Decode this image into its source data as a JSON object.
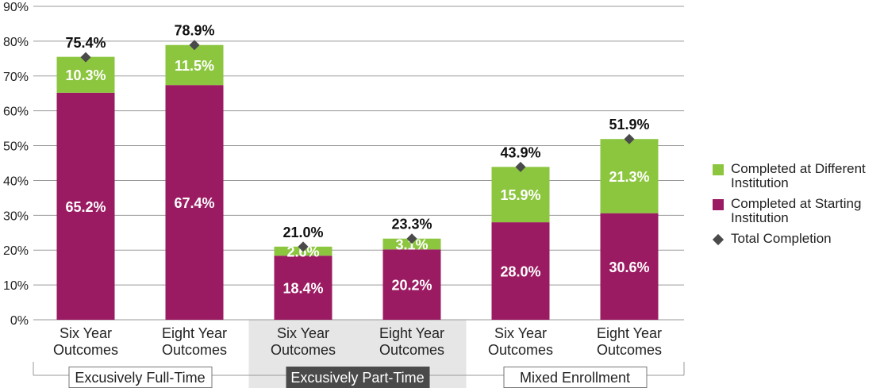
{
  "chart_data": {
    "type": "bar",
    "stacked": true,
    "title": "",
    "xlabel": "",
    "ylabel": "",
    "ylim": [
      0,
      90
    ],
    "yticks": [
      "0%",
      "10%",
      "20%",
      "30%",
      "40%",
      "50%",
      "60%",
      "70%",
      "80%",
      "90%"
    ],
    "grid": true,
    "legend_position": "right",
    "categories": [
      [
        "Six Year",
        "Outcomes"
      ],
      [
        "Eight Year",
        "Outcomes"
      ],
      [
        "Six Year",
        "Outcomes"
      ],
      [
        "Eight Year",
        "Outcomes"
      ],
      [
        "Six Year",
        "Outcomes"
      ],
      [
        "Eight Year",
        "Outcomes"
      ]
    ],
    "groups": [
      {
        "label": "Excusively Full-Time",
        "highlight": false
      },
      {
        "label": "Excusively Part-Time",
        "highlight": true
      },
      {
        "label": "Mixed Enrollment",
        "highlight": false
      }
    ],
    "series": [
      {
        "name": "Completed at Starting Institution",
        "values": [
          65.2,
          67.4,
          18.4,
          20.2,
          28.0,
          30.6
        ],
        "labels": [
          "65.2%",
          "67.4%",
          "18.4%",
          "20.2%",
          "28.0%",
          "30.6%"
        ],
        "color": "#9b1b62"
      },
      {
        "name": "Completed at Different Institution",
        "values": [
          10.3,
          11.5,
          2.6,
          3.1,
          15.9,
          21.3
        ],
        "labels": [
          "10.3%",
          "11.5%",
          "2.6%",
          "3.1%",
          "15.9%",
          "21.3%"
        ],
        "color": "#8cc63f"
      },
      {
        "name": "Total Completion",
        "type": "marker",
        "values": [
          75.4,
          78.9,
          21.0,
          23.3,
          43.9,
          51.9
        ],
        "labels": [
          "75.4%",
          "78.9%",
          "21.0%",
          "23.3%",
          "43.9%",
          "51.9%"
        ],
        "color": "#4a4a4a"
      }
    ]
  },
  "legend": {
    "items": [
      {
        "label": "Completed at Different Institution",
        "color": "#8cc63f",
        "shape": "square"
      },
      {
        "label": "Completed at Starting Institution",
        "color": "#9b1b62",
        "shape": "square"
      },
      {
        "label": "Total Completion",
        "color": "#4a4a4a",
        "shape": "diamond"
      }
    ]
  },
  "colors": {
    "grid": "#999999",
    "group_highlight_bg": "#e6e6e6",
    "group_highlight_box": "#4a4a4a",
    "axis_text": "#222222"
  }
}
